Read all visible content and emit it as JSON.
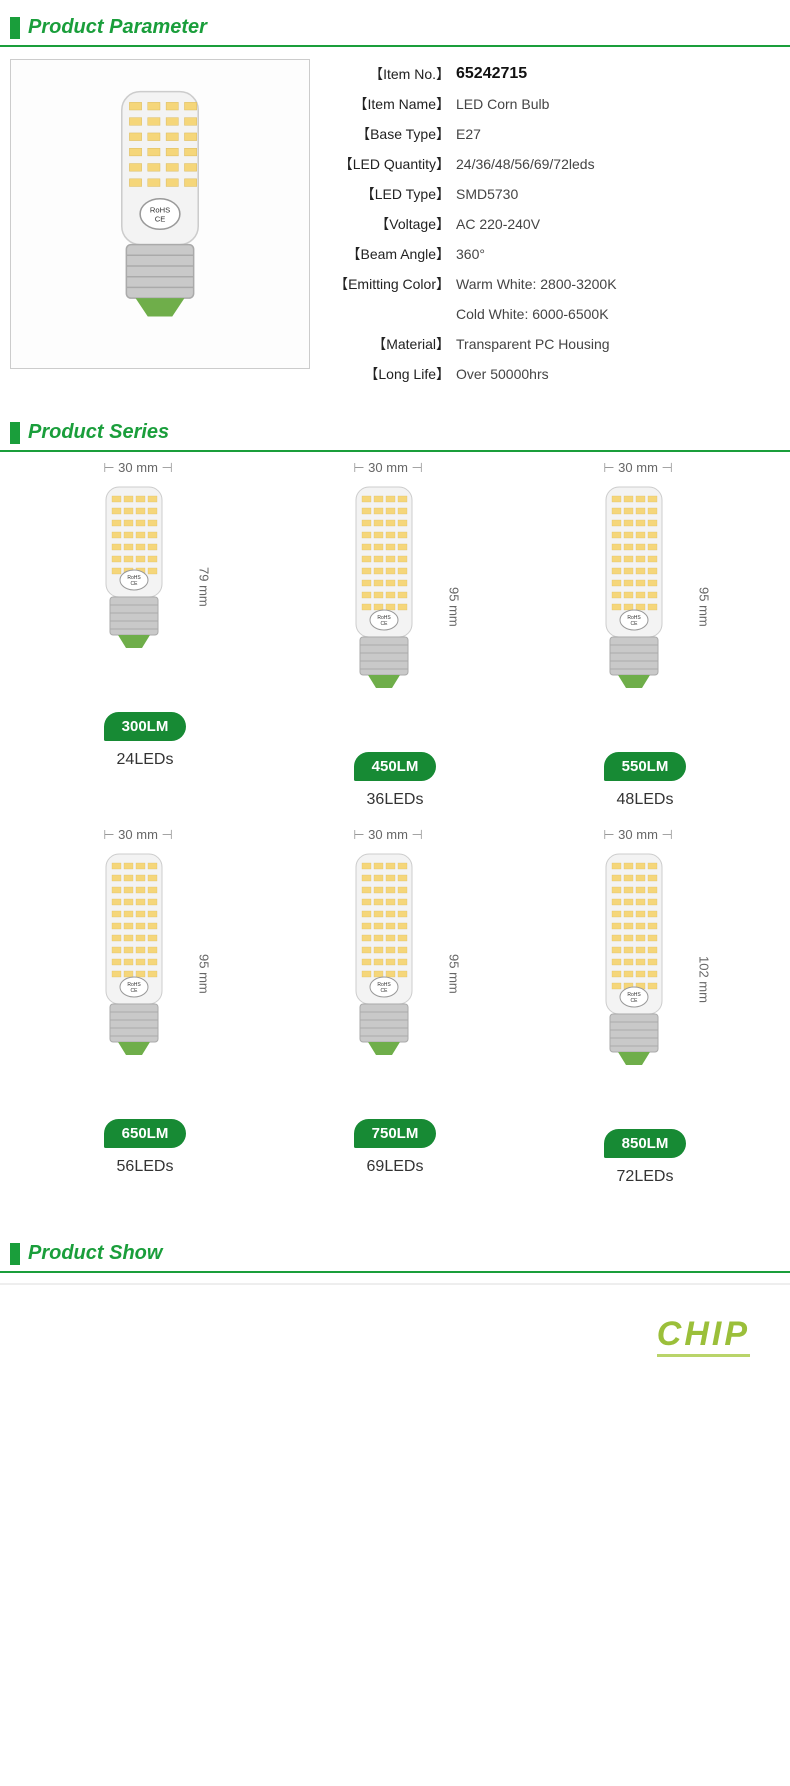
{
  "colors": {
    "accent": "#1a9e3b",
    "badge": "#178a34",
    "chip": "#9bbf3a",
    "chipUnderline": "#b9d46a",
    "ledWarm": "#f5d67a",
    "ledCool": "#e8e8e8",
    "bulbGlass": "#f3f3f3",
    "bulbMetal": "#c9c9c9",
    "bulbBase": "#6fae4a",
    "dimText": "#666"
  },
  "sections": {
    "parameter": "Product Parameter",
    "series": "Product Series",
    "show": "Product Show"
  },
  "spec": [
    {
      "label": "Item No.",
      "value": "65242715",
      "first": true
    },
    {
      "label": "Item Name",
      "value": "LED Corn Bulb"
    },
    {
      "label": "Base Type",
      "value": "E27"
    },
    {
      "label": "LED Quantity",
      "value": "24/36/48/56/69/72leds"
    },
    {
      "label": "LED Type",
      "value": "SMD5730"
    },
    {
      "label": "Voltage",
      "value": "AC 220-240V"
    },
    {
      "label": "Beam Angle",
      "value": "360°"
    },
    {
      "label": "Emitting Color",
      "value": "Warm White: 2800-3200K"
    },
    {
      "label": "",
      "value": "Cold White: 6000-6500K",
      "noLabel": true
    },
    {
      "label": "Material",
      "value": "Transparent PC Housing"
    },
    {
      "label": "Long Life",
      "value": "Over 50000hrs"
    }
  ],
  "series": [
    {
      "width": "30 mm",
      "height": "79 mm",
      "lumen": "300LM",
      "leds": "24LEDs",
      "bodyH": 120
    },
    {
      "width": "30 mm",
      "height": "95 mm",
      "lumen": "450LM",
      "leds": "36LEDs",
      "bodyH": 160
    },
    {
      "width": "30 mm",
      "height": "95 mm",
      "lumen": "550LM",
      "leds": "48LEDs",
      "bodyH": 160
    },
    {
      "width": "30 mm",
      "height": "95 mm",
      "lumen": "650LM",
      "leds": "56LEDs",
      "bodyH": 160
    },
    {
      "width": "30 mm",
      "height": "95 mm",
      "lumen": "750LM",
      "leds": "69LEDs",
      "bodyH": 160
    },
    {
      "width": "30 mm",
      "height": "102 mm",
      "lumen": "850LM",
      "leds": "72LEDs",
      "bodyH": 170
    }
  ],
  "chip": "CHIP"
}
